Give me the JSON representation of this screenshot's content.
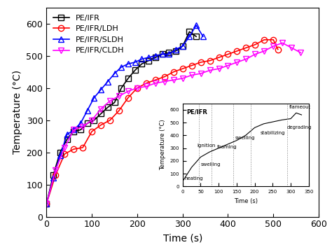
{
  "chart_data": [
    {
      "type": "line",
      "x_label": "Time (s)",
      "y_label": "Temperature (°C)",
      "xlim": [
        0,
        600
      ],
      "xticks": [
        0,
        100,
        200,
        300,
        400,
        500,
        600
      ],
      "ylim": [
        0,
        650
      ],
      "yticks": [
        0,
        100,
        200,
        300,
        400,
        500,
        600
      ],
      "legend": "upper left",
      "series": [
        {
          "name": "PE/IFR",
          "color": "#000000",
          "marker": "s",
          "line_style": "solid",
          "x": [
            0,
            15,
            30,
            45,
            60,
            75,
            90,
            105,
            120,
            135,
            150,
            165,
            180,
            195,
            210,
            225,
            240,
            255,
            270,
            285,
            300,
            315,
            330
          ],
          "values": [
            40,
            130,
            200,
            240,
            265,
            270,
            290,
            300,
            320,
            340,
            355,
            400,
            430,
            455,
            475,
            485,
            495,
            505,
            510,
            515,
            530,
            575,
            560
          ]
        },
        {
          "name": "PE/IFR/LDH",
          "color": "#ff0000",
          "marker": "o",
          "line_style": "solid",
          "x": [
            0,
            20,
            40,
            60,
            80,
            100,
            120,
            140,
            160,
            180,
            200,
            220,
            240,
            260,
            280,
            300,
            320,
            340,
            360,
            380,
            400,
            420,
            440,
            460,
            480,
            500,
            510
          ],
          "values": [
            40,
            130,
            195,
            210,
            215,
            265,
            285,
            300,
            330,
            370,
            400,
            415,
            425,
            435,
            450,
            460,
            470,
            480,
            485,
            495,
            505,
            515,
            525,
            535,
            550,
            550,
            520
          ]
        },
        {
          "name": "PE/IFR/SLDH",
          "color": "#0000ff",
          "marker": "^",
          "line_style": "solid",
          "x": [
            0,
            15,
            30,
            45,
            60,
            75,
            90,
            105,
            120,
            135,
            150,
            165,
            180,
            195,
            210,
            225,
            240,
            255,
            270,
            285,
            300,
            315,
            330,
            345
          ],
          "values": [
            40,
            120,
            190,
            255,
            270,
            290,
            330,
            370,
            395,
            420,
            445,
            465,
            475,
            480,
            490,
            495,
            500,
            505,
            505,
            520,
            530,
            560,
            595,
            560
          ]
        },
        {
          "name": "PE/IFR/CLDH",
          "color": "#ff00ff",
          "marker": "v",
          "line_style": "solid",
          "x": [
            0,
            20,
            40,
            60,
            80,
            100,
            120,
            140,
            160,
            180,
            200,
            220,
            240,
            260,
            280,
            300,
            320,
            340,
            360,
            380,
            400,
            420,
            440,
            460,
            480,
            500,
            520,
            540,
            560
          ],
          "values": [
            40,
            145,
            215,
            270,
            280,
            300,
            335,
            360,
            375,
            390,
            400,
            405,
            415,
            420,
            425,
            430,
            440,
            445,
            455,
            460,
            470,
            480,
            490,
            505,
            515,
            530,
            540,
            525,
            510
          ]
        }
      ]
    },
    {
      "type": "line",
      "x_label": "Time (s)",
      "y_label": "Temperature (°C)",
      "xlim": [
        0,
        350
      ],
      "xticks": [
        0,
        50,
        100,
        150,
        200,
        250,
        300,
        350
      ],
      "ylim": [
        0,
        650
      ],
      "yticks": [
        0,
        100,
        200,
        300,
        400,
        500,
        600
      ],
      "series": [
        {
          "name": "PE/IFR",
          "color": "#000000",
          "line_style": "solid",
          "x": [
            0,
            25,
            50,
            75,
            100,
            125,
            150,
            175,
            200,
            225,
            250,
            275,
            300,
            315,
            330
          ],
          "values": [
            40,
            150,
            230,
            270,
            300,
            330,
            360,
            400,
            460,
            490,
            505,
            520,
            530,
            575,
            560
          ]
        }
      ],
      "boundaries": [
        45,
        80,
        140,
        190,
        290
      ],
      "annotations": [
        {
          "text": "heating",
          "x": 5,
          "y": 60
        },
        {
          "text": "Ignition",
          "x": 40,
          "y": 320
        },
        {
          "text": "swelling",
          "x": 50,
          "y": 170
        },
        {
          "text": "foaming",
          "x": 95,
          "y": 310
        },
        {
          "text": "swelling",
          "x": 145,
          "y": 380
        },
        {
          "text": "stabilizing",
          "x": 215,
          "y": 420
        },
        {
          "text": "degrading",
          "x": 290,
          "y": 460
        },
        {
          "text": "flameout",
          "x": 295,
          "y": 620
        }
      ]
    }
  ]
}
